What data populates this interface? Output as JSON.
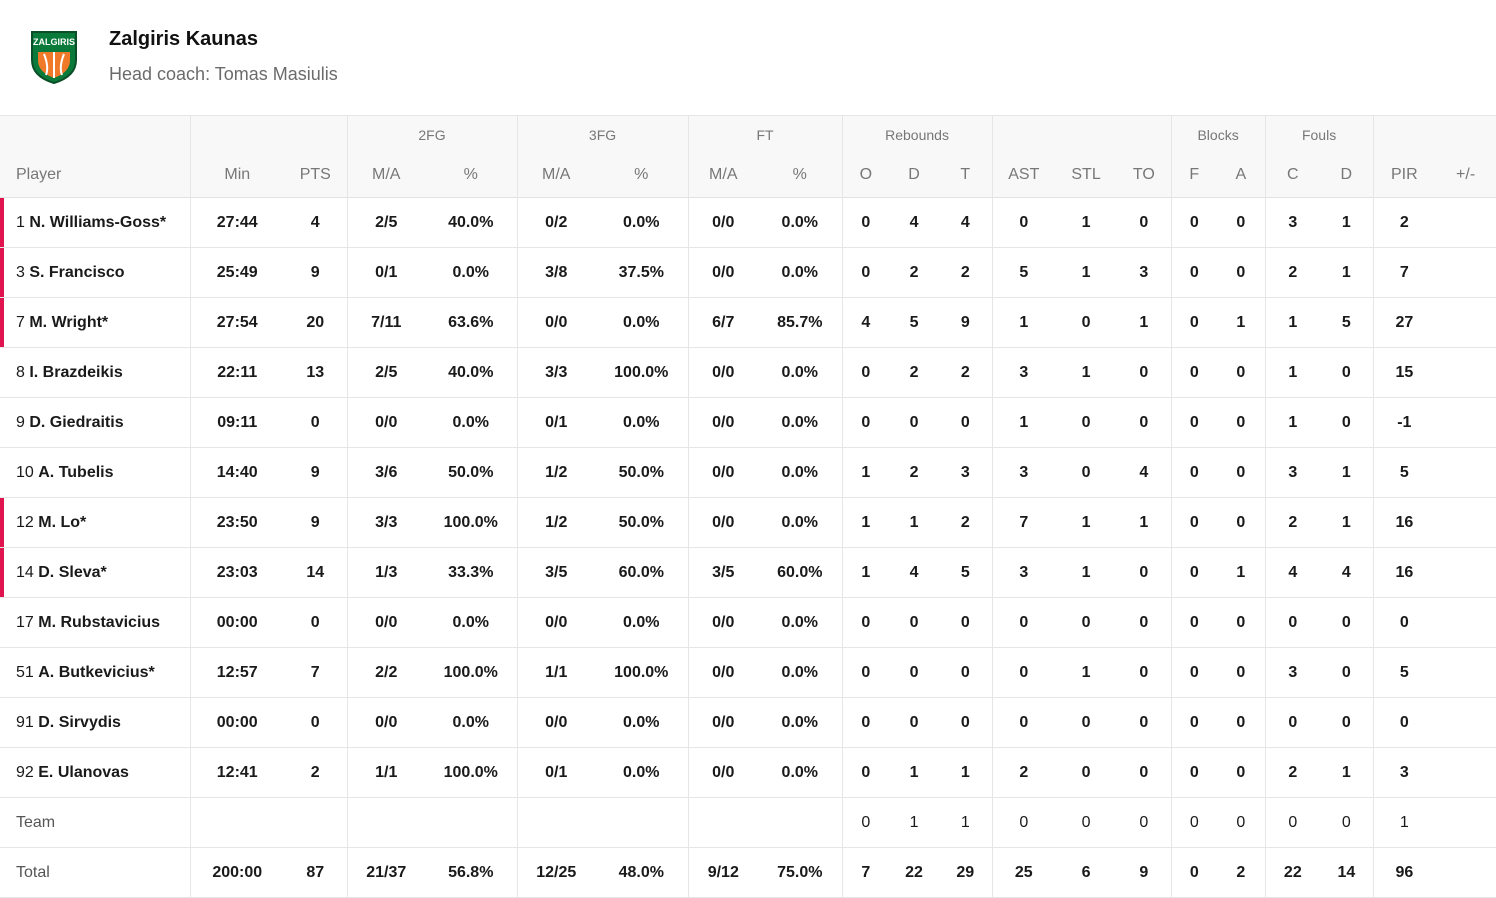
{
  "header": {
    "team_name": "Zalgiris Kaunas",
    "coach": "Head coach: Tomas Masiulis",
    "logo_text": "ZALGIRIS"
  },
  "table": {
    "groups": {
      "fg2": "2FG",
      "fg3": "3FG",
      "ft": "FT",
      "rebounds": "Rebounds",
      "blocks": "Blocks",
      "fouls": "Fouls"
    },
    "columns": [
      "Player",
      "Min",
      "PTS",
      "M/A",
      "%",
      "M/A",
      "%",
      "M/A",
      "%",
      "O",
      "D",
      "T",
      "AST",
      "STL",
      "TO",
      "F",
      "A",
      "C",
      "D",
      "PIR",
      "+/-"
    ],
    "players": [
      {
        "num": "1",
        "name": "N. Williams-Goss*",
        "starter": true,
        "stats": [
          "27:44",
          "4",
          "2/5",
          "40.0%",
          "0/2",
          "0.0%",
          "0/0",
          "0.0%",
          "0",
          "4",
          "4",
          "0",
          "1",
          "0",
          "0",
          "0",
          "3",
          "1",
          "2",
          ""
        ]
      },
      {
        "num": "3",
        "name": "S. Francisco",
        "starter": true,
        "stats": [
          "25:49",
          "9",
          "0/1",
          "0.0%",
          "3/8",
          "37.5%",
          "0/0",
          "0.0%",
          "0",
          "2",
          "2",
          "5",
          "1",
          "3",
          "0",
          "0",
          "2",
          "1",
          "7",
          ""
        ]
      },
      {
        "num": "7",
        "name": "M. Wright*",
        "starter": true,
        "stats": [
          "27:54",
          "20",
          "7/11",
          "63.6%",
          "0/0",
          "0.0%",
          "6/7",
          "85.7%",
          "4",
          "5",
          "9",
          "1",
          "0",
          "1",
          "0",
          "1",
          "1",
          "5",
          "27",
          ""
        ]
      },
      {
        "num": "8",
        "name": "I. Brazdeikis",
        "starter": false,
        "stats": [
          "22:11",
          "13",
          "2/5",
          "40.0%",
          "3/3",
          "100.0%",
          "0/0",
          "0.0%",
          "0",
          "2",
          "2",
          "3",
          "1",
          "0",
          "0",
          "0",
          "1",
          "0",
          "15",
          ""
        ]
      },
      {
        "num": "9",
        "name": "D. Giedraitis",
        "starter": false,
        "stats": [
          "09:11",
          "0",
          "0/0",
          "0.0%",
          "0/1",
          "0.0%",
          "0/0",
          "0.0%",
          "0",
          "0",
          "0",
          "1",
          "0",
          "0",
          "0",
          "0",
          "1",
          "0",
          "-1",
          ""
        ]
      },
      {
        "num": "10",
        "name": "A. Tubelis",
        "starter": false,
        "stats": [
          "14:40",
          "9",
          "3/6",
          "50.0%",
          "1/2",
          "50.0%",
          "0/0",
          "0.0%",
          "1",
          "2",
          "3",
          "3",
          "0",
          "4",
          "0",
          "0",
          "3",
          "1",
          "5",
          ""
        ]
      },
      {
        "num": "12",
        "name": "M. Lo*",
        "starter": true,
        "stats": [
          "23:50",
          "9",
          "3/3",
          "100.0%",
          "1/2",
          "50.0%",
          "0/0",
          "0.0%",
          "1",
          "1",
          "2",
          "7",
          "1",
          "1",
          "0",
          "0",
          "2",
          "1",
          "16",
          ""
        ]
      },
      {
        "num": "14",
        "name": "D. Sleva*",
        "starter": true,
        "stats": [
          "23:03",
          "14",
          "1/3",
          "33.3%",
          "3/5",
          "60.0%",
          "3/5",
          "60.0%",
          "1",
          "4",
          "5",
          "3",
          "1",
          "0",
          "0",
          "1",
          "4",
          "4",
          "16",
          ""
        ]
      },
      {
        "num": "17",
        "name": "M. Rubstavicius",
        "starter": false,
        "stats": [
          "00:00",
          "0",
          "0/0",
          "0.0%",
          "0/0",
          "0.0%",
          "0/0",
          "0.0%",
          "0",
          "0",
          "0",
          "0",
          "0",
          "0",
          "0",
          "0",
          "0",
          "0",
          "0",
          ""
        ]
      },
      {
        "num": "51",
        "name": "A. Butkevicius*",
        "starter": false,
        "stats": [
          "12:57",
          "7",
          "2/2",
          "100.0%",
          "1/1",
          "100.0%",
          "0/0",
          "0.0%",
          "0",
          "0",
          "0",
          "0",
          "1",
          "0",
          "0",
          "0",
          "3",
          "0",
          "5",
          ""
        ]
      },
      {
        "num": "91",
        "name": "D. Sirvydis",
        "starter": false,
        "stats": [
          "00:00",
          "0",
          "0/0",
          "0.0%",
          "0/0",
          "0.0%",
          "0/0",
          "0.0%",
          "0",
          "0",
          "0",
          "0",
          "0",
          "0",
          "0",
          "0",
          "0",
          "0",
          "0",
          ""
        ]
      },
      {
        "num": "92",
        "name": "E. Ulanovas",
        "starter": false,
        "stats": [
          "12:41",
          "2",
          "1/1",
          "100.0%",
          "0/1",
          "0.0%",
          "0/0",
          "0.0%",
          "0",
          "1",
          "1",
          "2",
          "0",
          "0",
          "0",
          "0",
          "2",
          "1",
          "3",
          ""
        ]
      }
    ],
    "team_row": {
      "label": "Team",
      "stats": [
        "",
        "",
        "",
        "",
        "",
        "",
        "",
        "",
        "0",
        "1",
        "1",
        "0",
        "0",
        "0",
        "0",
        "0",
        "0",
        "0",
        "1",
        ""
      ]
    },
    "total_row": {
      "label": "Total",
      "stats": [
        "200:00",
        "87",
        "21/37",
        "56.8%",
        "12/25",
        "48.0%",
        "9/12",
        "75.0%",
        "7",
        "22",
        "29",
        "25",
        "6",
        "9",
        "0",
        "2",
        "22",
        "14",
        "96",
        ""
      ]
    }
  }
}
